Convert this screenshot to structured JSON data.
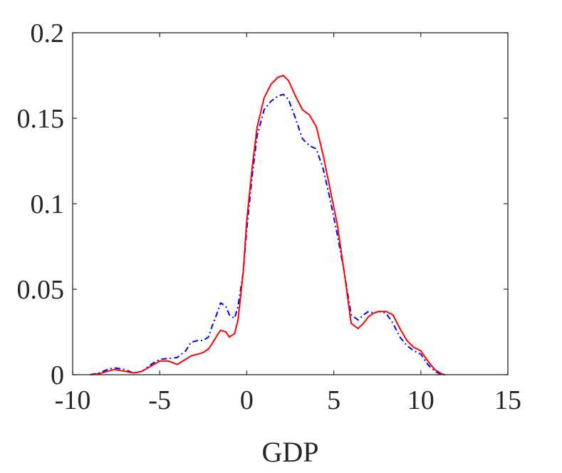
{
  "chart_data": {
    "type": "line",
    "title": "",
    "xlabel": "GDP",
    "ylabel": "",
    "xlim": [
      -10,
      15
    ],
    "ylim": [
      0,
      0.2
    ],
    "xticks": [
      -10,
      -5,
      0,
      5,
      10,
      15
    ],
    "yticks": [
      0,
      0.05,
      0.1,
      0.15,
      0.2
    ],
    "xtick_labels": [
      "-10",
      "-5",
      "0",
      "5",
      "10",
      "15"
    ],
    "ytick_labels": [
      "0",
      "0.05",
      "0.1",
      "0.15",
      "0.2"
    ],
    "grid": false,
    "series": [
      {
        "color": "#0000ff",
        "style": "dashdot",
        "x": [
          -9.0,
          -8.5,
          -8.0,
          -7.6,
          -7.0,
          -6.5,
          -6.0,
          -5.5,
          -5.0,
          -4.5,
          -4.0,
          -3.5,
          -3.2,
          -2.8,
          -2.5,
          -2.2,
          -2.0,
          -1.7,
          -1.5,
          -1.2,
          -1.0,
          -0.7,
          -0.5,
          -0.2,
          0.0,
          0.3,
          0.6,
          1.0,
          1.4,
          1.8,
          2.1,
          2.4,
          2.8,
          3.2,
          3.6,
          4.0,
          4.4,
          4.8,
          5.2,
          5.6,
          6.0,
          6.4,
          6.7,
          7.0,
          7.3,
          7.6,
          8.0,
          8.4,
          8.8,
          9.2,
          9.6,
          10.0,
          10.4,
          10.8,
          11.2,
          11.4
        ],
        "y": [
          0.0,
          0.001,
          0.003,
          0.004,
          0.003,
          0.001,
          0.002,
          0.006,
          0.009,
          0.0095,
          0.01,
          0.014,
          0.019,
          0.02,
          0.02,
          0.022,
          0.028,
          0.036,
          0.042,
          0.04,
          0.035,
          0.033,
          0.04,
          0.06,
          0.085,
          0.115,
          0.14,
          0.155,
          0.16,
          0.163,
          0.164,
          0.161,
          0.15,
          0.138,
          0.134,
          0.132,
          0.12,
          0.102,
          0.082,
          0.06,
          0.035,
          0.032,
          0.035,
          0.037,
          0.036,
          0.037,
          0.036,
          0.03,
          0.022,
          0.017,
          0.014,
          0.012,
          0.006,
          0.002,
          0.0,
          0.0
        ]
      },
      {
        "color": "#ff0000",
        "style": "solid",
        "x": [
          -9.0,
          -8.5,
          -8.0,
          -7.6,
          -7.0,
          -6.5,
          -6.0,
          -5.5,
          -5.0,
          -4.5,
          -4.0,
          -3.5,
          -3.2,
          -2.8,
          -2.5,
          -2.2,
          -2.0,
          -1.7,
          -1.5,
          -1.2,
          -1.0,
          -0.7,
          -0.5,
          -0.2,
          0.0,
          0.3,
          0.6,
          1.0,
          1.4,
          1.8,
          2.1,
          2.4,
          2.8,
          3.2,
          3.6,
          4.0,
          4.4,
          4.8,
          5.2,
          5.6,
          6.0,
          6.4,
          6.7,
          7.0,
          7.3,
          7.6,
          8.0,
          8.4,
          8.8,
          9.2,
          9.6,
          10.0,
          10.4,
          10.8,
          11.2,
          11.4
        ],
        "y": [
          0.0,
          0.0005,
          0.002,
          0.003,
          0.002,
          0.001,
          0.002,
          0.005,
          0.008,
          0.008,
          0.006,
          0.009,
          0.011,
          0.012,
          0.013,
          0.015,
          0.018,
          0.023,
          0.026,
          0.025,
          0.022,
          0.024,
          0.032,
          0.06,
          0.09,
          0.12,
          0.145,
          0.162,
          0.17,
          0.174,
          0.175,
          0.172,
          0.163,
          0.155,
          0.152,
          0.145,
          0.128,
          0.108,
          0.088,
          0.06,
          0.03,
          0.027,
          0.03,
          0.034,
          0.036,
          0.037,
          0.037,
          0.035,
          0.027,
          0.02,
          0.016,
          0.014,
          0.008,
          0.003,
          0.0005,
          0.0
        ]
      }
    ]
  }
}
